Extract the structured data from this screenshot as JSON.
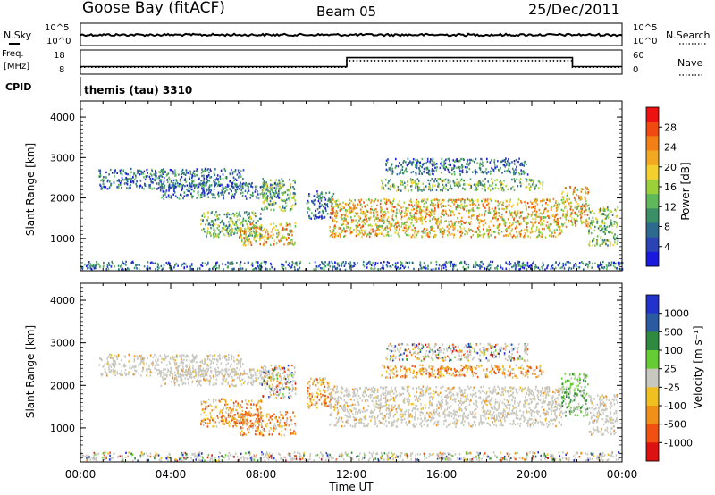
{
  "header": {
    "station": "Goose Bay (fitACF)",
    "beam": "Beam 05",
    "date": "25/Dec/2011"
  },
  "top_panels": {
    "nsky_label": "N.Sky",
    "nsearch_label": "N.Search",
    "nsky_ticks_left": [
      "10^5",
      "10^0"
    ],
    "nsky_ticks_right": [
      "10^5",
      "10^0"
    ],
    "freq_label": "Freq.",
    "freq_unit": "[MHz]",
    "freq_ticks": [
      "18",
      "8"
    ],
    "nave_label": "Nave",
    "nave_ticks": [
      "60",
      "0"
    ],
    "cpid_label": "CPID",
    "cpid_text": "themis (tau) 3310"
  },
  "power_colorbar": {
    "label": "Power [dB]",
    "ticks": [
      "28",
      "24",
      "20",
      "16",
      "12",
      "8",
      "4"
    ],
    "colors": [
      "#ee1111",
      "#f04a10",
      "#f47f15",
      "#f2a822",
      "#f3d02e",
      "#9cd039",
      "#5fb85a",
      "#3a8f66",
      "#2e6a8e",
      "#2a44b8",
      "#1a1adf"
    ]
  },
  "velocity_colorbar": {
    "label": "Velocity [m s⁻¹]",
    "ticks": [
      "1000",
      "500",
      "100",
      "25",
      "-25",
      "-100",
      "-500",
      "-1000"
    ],
    "colors": [
      "#2233cc",
      "#2a5aa0",
      "#2f8a3f",
      "#66cc33",
      "#c8c8c0",
      "#f0c020",
      "#f09018",
      "#f05010",
      "#dd1111"
    ]
  },
  "chart_data": {
    "type": "heatmap",
    "panels": [
      {
        "name": "Power",
        "xlabel": "",
        "ylabel": "Slant Range [km]",
        "ylim": [
          200,
          4400
        ],
        "yticks": [
          "1000",
          "2000",
          "3000",
          "4000"
        ]
      },
      {
        "name": "Velocity",
        "xlabel": "Time UT",
        "ylabel": "Slant Range [km]",
        "ylim": [
          200,
          4400
        ],
        "yticks": [
          "1000",
          "2000",
          "3000",
          "4000"
        ]
      }
    ],
    "x_ticks": [
      "00:00",
      "04:00",
      "08:00",
      "12:00",
      "16:00",
      "20:00",
      "00:00"
    ],
    "xlim_hours": [
      0,
      24
    ],
    "freq_series": {
      "name": "Freq.",
      "segments": [
        [
          0,
          11.8,
          10.5
        ],
        [
          11.8,
          21.8,
          15
        ],
        [
          21.8,
          24,
          10.5
        ]
      ]
    },
    "nave_series": {
      "name": "Nave",
      "segments": [
        [
          0,
          11.8,
          13
        ],
        [
          11.8,
          21.8,
          33
        ],
        [
          21.8,
          24,
          13
        ]
      ]
    },
    "nsky_level": 0.48,
    "echo_regions": [
      {
        "t": [
          0.8,
          7.2
        ],
        "r": [
          2250,
          2750
        ],
        "power": "low",
        "vel": "ground"
      },
      {
        "t": [
          3.5,
          9.0
        ],
        "r": [
          2000,
          2400
        ],
        "power": "low",
        "vel": "ground"
      },
      {
        "t": [
          5.3,
          8.0
        ],
        "r": [
          1050,
          1700
        ],
        "power": "mid",
        "vel": "neg"
      },
      {
        "t": [
          7.0,
          9.5
        ],
        "r": [
          850,
          1400
        ],
        "power": "high",
        "vel": "neg"
      },
      {
        "t": [
          8.0,
          9.5
        ],
        "r": [
          1700,
          2500
        ],
        "power": "mid",
        "vel": "mix"
      },
      {
        "t": [
          10.0,
          11.2
        ],
        "r": [
          1500,
          2200
        ],
        "power": "low",
        "vel": "neg"
      },
      {
        "t": [
          11.0,
          21.3
        ],
        "r": [
          1050,
          2000
        ],
        "power": "high",
        "vel": "ground"
      },
      {
        "t": [
          13.3,
          20.5
        ],
        "r": [
          2200,
          2500
        ],
        "power": "mid",
        "vel": "neg"
      },
      {
        "t": [
          13.5,
          19.8
        ],
        "r": [
          2600,
          3000
        ],
        "power": "low",
        "vel": "mix"
      },
      {
        "t": [
          21.3,
          22.5
        ],
        "r": [
          1300,
          2300
        ],
        "power": "high",
        "vel": "pos"
      },
      {
        "t": [
          22.5,
          23.8
        ],
        "r": [
          850,
          1800
        ],
        "power": "mid",
        "vel": "ground"
      },
      {
        "t": [
          0.0,
          24.0
        ],
        "r": [
          250,
          450
        ],
        "power": "low",
        "vel": "mix"
      }
    ]
  }
}
